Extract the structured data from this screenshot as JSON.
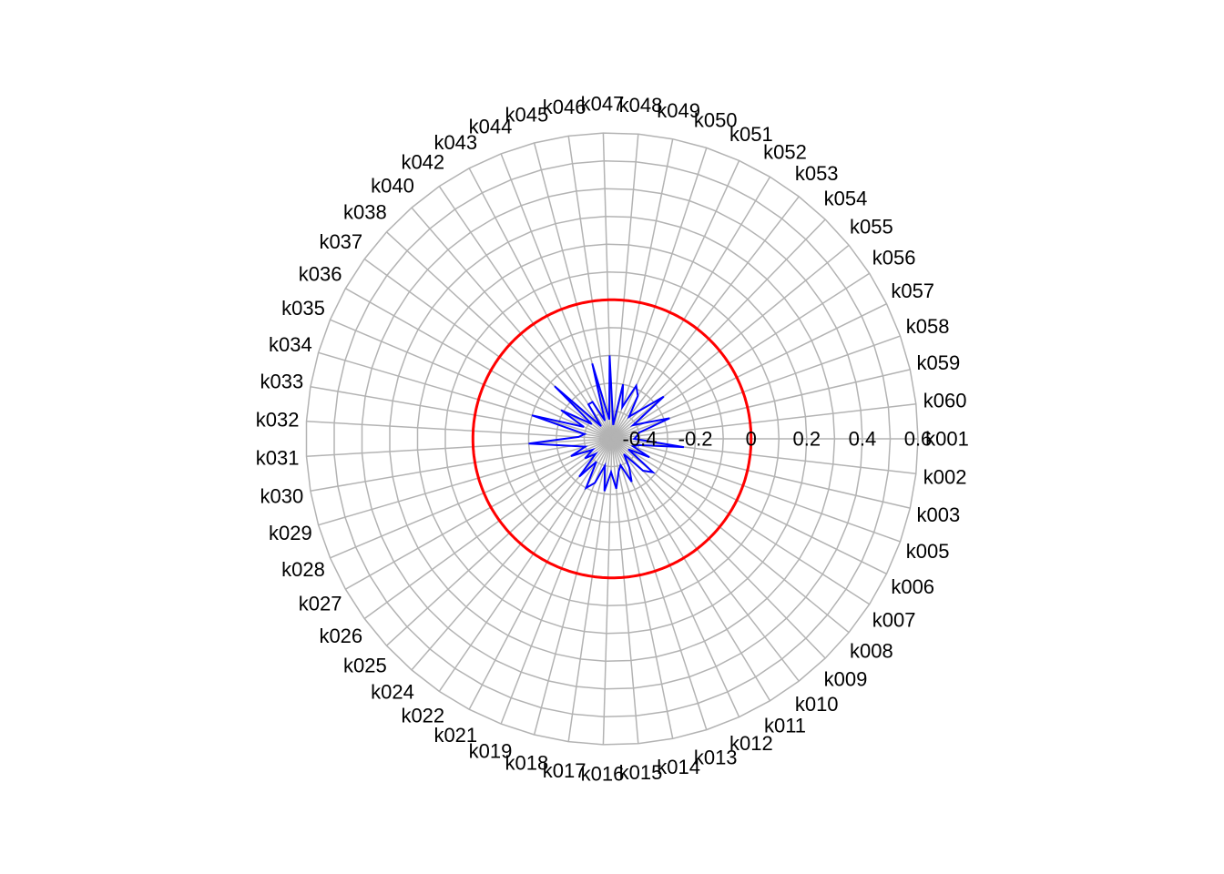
{
  "chart_data": {
    "type": "radar",
    "title": "",
    "categories": [
      "k001",
      "k002",
      "k003",
      "k005",
      "k006",
      "k007",
      "k008",
      "k009",
      "k010",
      "k011",
      "k012",
      "k013",
      "k014",
      "k015",
      "k016",
      "k017",
      "k018",
      "k019",
      "k021",
      "k022",
      "k024",
      "k025",
      "k026",
      "k027",
      "k028",
      "k029",
      "k030",
      "k031",
      "k032",
      "k033",
      "k034",
      "k035",
      "k036",
      "k037",
      "k038",
      "k040",
      "k042",
      "k043",
      "k044",
      "k045",
      "k046",
      "k047",
      "k048",
      "k049",
      "k050",
      "k051",
      "k052",
      "k053",
      "k054",
      "k055",
      "k056",
      "k057",
      "k058",
      "k059",
      "k060"
    ],
    "radial_axis": {
      "min": -0.5,
      "max": 0.6,
      "ticks": [
        -0.4,
        -0.2,
        0,
        0.2,
        0.4,
        0.6
      ],
      "tick_labels": [
        "-0.4",
        "-0.2",
        "0",
        "0.2",
        "0.4",
        "0.6"
      ],
      "grid_rings": [
        -0.5,
        -0.4,
        -0.3,
        -0.2,
        -0.1,
        0,
        0.1,
        0.2,
        0.3,
        0.4,
        0.5,
        0.6
      ]
    },
    "reference_circle": {
      "value": 0,
      "color": "#ff0000"
    },
    "series": [
      {
        "color": "#0000ff",
        "values": [
          -0.42,
          -0.24,
          -0.4,
          -0.42,
          -0.35,
          -0.43,
          -0.31,
          -0.34,
          -0.43,
          -0.38,
          -0.33,
          -0.4,
          -0.38,
          -0.32,
          -0.38,
          -0.31,
          -0.4,
          -0.33,
          -0.3,
          -0.4,
          -0.32,
          -0.42,
          -0.38,
          -0.42,
          -0.34,
          -0.4,
          -0.35,
          -0.2,
          -0.38,
          -0.4,
          -0.2,
          -0.39,
          -0.29,
          -0.41,
          -0.22,
          -0.44,
          -0.35,
          -0.35,
          -0.43,
          -0.22,
          -0.43,
          -0.2,
          -0.45,
          -0.3,
          -0.38,
          -0.29,
          -0.32,
          -0.4,
          -0.36,
          -0.26,
          -0.41,
          -0.37,
          -0.28,
          -0.4,
          -0.41
        ]
      }
    ],
    "grid": true,
    "grid_color": "#b3b3b3",
    "legend": "none"
  }
}
